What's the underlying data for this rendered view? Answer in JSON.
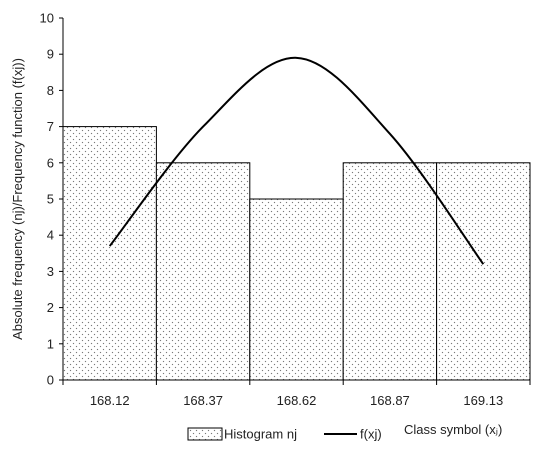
{
  "chart_data": {
    "type": "bar",
    "categories": [
      "168.12",
      "168.37",
      "168.62",
      "168.87",
      "169.13"
    ],
    "series": [
      {
        "name": "Histogram nj",
        "kind": "bar",
        "values": [
          7,
          6,
          5,
          6,
          6
        ]
      },
      {
        "name": "f(xj)",
        "kind": "line",
        "values": [
          3.7,
          7.0,
          8.9,
          6.8,
          3.2
        ]
      }
    ],
    "ylabel": "Absolute frequency (nj)/Frequency function (f(xj))",
    "xlabel": "Class symbol (xⱼ)",
    "ylim": [
      0,
      10
    ],
    "yticks": [
      0,
      1,
      2,
      3,
      4,
      5,
      6,
      7,
      8,
      9,
      10
    ],
    "grid": false,
    "legend_position": "bottom",
    "colors": {
      "bar_fill": "#ffffff",
      "bar_dots": "#7a7a7a",
      "bar_edge": "#000000",
      "line": "#000000",
      "axis": "#000000"
    }
  }
}
